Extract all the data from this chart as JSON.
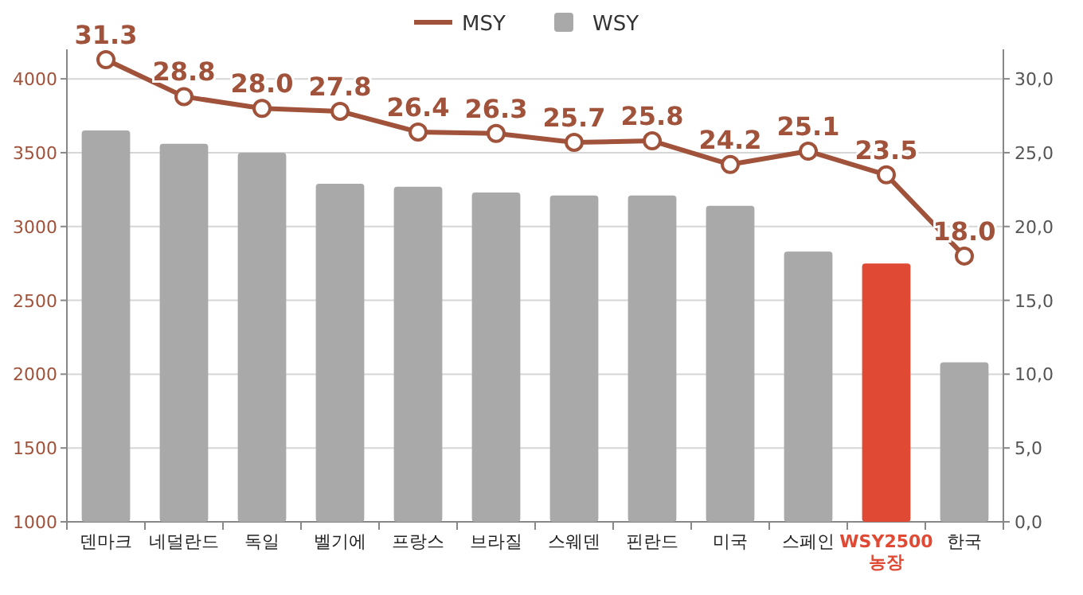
{
  "chart_data": {
    "type": "bar",
    "categories": [
      "덴마크",
      "네덜란드",
      "독일",
      "벨기에",
      "프랑스",
      "브라질",
      "스웨덴",
      "핀란드",
      "미국",
      "스페인",
      "WSY2500 농장",
      "한국"
    ],
    "series": [
      {
        "name": "MSY",
        "type": "line",
        "axis": "y2",
        "color": "#a0523a",
        "marker": "circle",
        "value_labels": [
          "31.3",
          "28.8",
          "28.0",
          "27.8",
          "26.4",
          "26.3",
          "25.7",
          "25.8",
          "24.2",
          "25.1",
          "23.5",
          "18.0"
        ],
        "values": [
          31.3,
          28.8,
          28.0,
          27.8,
          26.4,
          26.3,
          25.7,
          25.8,
          24.2,
          25.1,
          23.5,
          18.0
        ]
      },
      {
        "name": "WSY",
        "color": "#a9a9a9",
        "colors": [
          "#a9a9a9",
          "#a9a9a9",
          "#a9a9a9",
          "#a9a9a9",
          "#a9a9a9",
          "#a9a9a9",
          "#a9a9a9",
          "#a9a9a9",
          "#a9a9a9",
          "#a9a9a9",
          "#e04a35",
          "#a9a9a9"
        ],
        "values": [
          3650,
          3560,
          3500,
          3290,
          3270,
          3230,
          3210,
          3210,
          3140,
          2830,
          2750,
          2080
        ]
      }
    ],
    "ylim": [
      1000,
      4200
    ],
    "yticks": [
      1000,
      1500,
      2000,
      2500,
      3000,
      3500,
      4000
    ],
    "y2lim": [
      0,
      32
    ],
    "y2ticks": [
      {
        "value": 0,
        "label": "0,0"
      },
      {
        "value": 5,
        "label": "5,0"
      },
      {
        "value": 10,
        "label": "10,0"
      },
      {
        "value": 15,
        "label": "15,0"
      },
      {
        "value": 20,
        "label": "20,0"
      },
      {
        "value": 25,
        "label": "25,0"
      },
      {
        "value": 30,
        "label": "30,0"
      }
    ],
    "grid": "y",
    "legend": "top"
  }
}
